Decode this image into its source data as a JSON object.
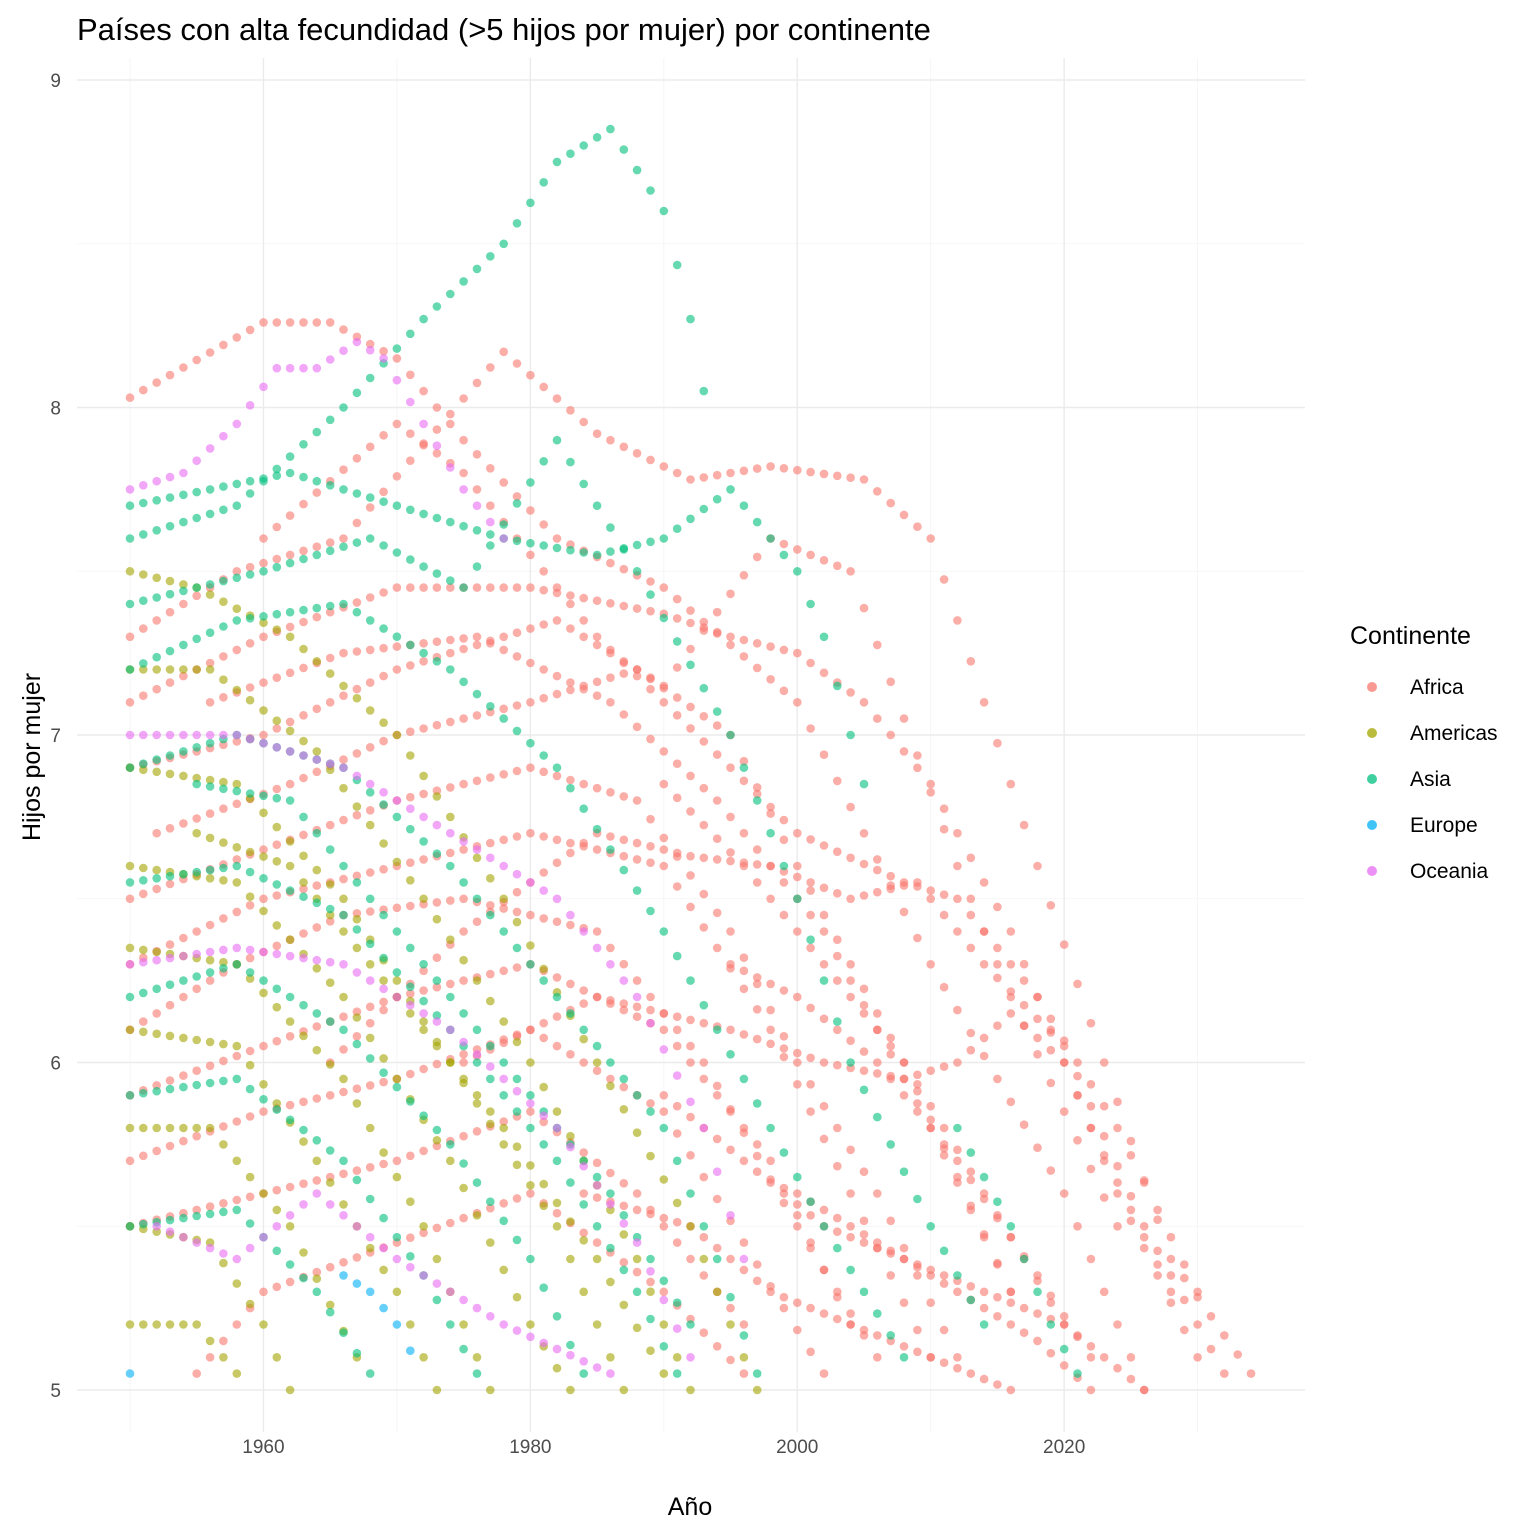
{
  "chart_data": {
    "type": "scatter",
    "title": "Países con alta fecundidad (>5 hijos por mujer) por continente",
    "xlabel": "Año",
    "ylabel": "Hijos por mujer",
    "xlim": [
      1950,
      2034
    ],
    "ylim": [
      5,
      9
    ],
    "x_ticks": [
      1960,
      1980,
      2000,
      2020
    ],
    "y_ticks": [
      5,
      6,
      7,
      8,
      9
    ],
    "grid": true,
    "legend": {
      "title": "Continente",
      "position": "right"
    },
    "colors": {
      "Africa": "#F8766D",
      "Americas": "#A3A500",
      "Asia": "#00BF7D",
      "Europe": "#00B0F6",
      "Oceania": "#E76BF3"
    },
    "series": [
      {
        "name": "Africa",
        "curves": [
          [
            1950,
            8.03,
            1960,
            8.26,
            1965,
            8.26,
            1970,
            8.15,
            1975,
            7.9,
            1982,
            7.6,
            1990,
            7.45,
            2000,
            7.1,
            2010,
            6.3,
            2020,
            5.6,
            2026,
            5.0
          ],
          [
            1950,
            7.3,
            1958,
            7.5,
            1966,
            7.6,
            1978,
            8.17,
            1985,
            7.92,
            1992,
            7.78,
            1998,
            7.82,
            2005,
            7.78,
            2010,
            7.6,
            2018,
            6.6,
            2028,
            5.4,
            2034,
            5.05
          ],
          [
            1950,
            7.1,
            1960,
            7.3,
            1970,
            7.45,
            1980,
            7.45,
            1990,
            7.37,
            1995,
            7.3,
            2000,
            7.25,
            2005,
            7.1,
            2010,
            6.85,
            2016,
            6.4,
            2022,
            5.8,
            2028,
            5.3
          ],
          [
            1950,
            6.9,
            1960,
            7.0,
            1970,
            7.2,
            1982,
            7.35,
            1990,
            7.15,
            1998,
            7.6,
            2004,
            7.5,
            2012,
            6.6,
            2016,
            6.2,
            2024,
            5.5
          ],
          [
            1952,
            6.7,
            1962,
            6.85,
            1970,
            7.0,
            1980,
            7.1,
            1988,
            7.2,
            1995,
            7.0,
            2000,
            6.6,
            2008,
            6.0,
            2016,
            5.3
          ],
          [
            1950,
            6.5,
            1960,
            6.65,
            1970,
            6.8,
            1980,
            6.9,
            1988,
            6.8,
            1995,
            6.4,
            2000,
            6.0,
            2006,
            5.6,
            2012,
            5.1
          ],
          [
            1950,
            6.3,
            1960,
            6.5,
            1970,
            6.6,
            1980,
            6.7,
            1990,
            6.6,
            1998,
            6.1,
            2004,
            5.6,
            2010,
            5.1
          ],
          [
            1950,
            6.1,
            1958,
            6.3,
            1966,
            6.45,
            1975,
            6.5,
            1985,
            6.4,
            1993,
            6.0,
            2000,
            5.5,
            2006,
            5.1
          ],
          [
            1950,
            5.9,
            1960,
            6.05,
            1970,
            6.2,
            1980,
            6.3,
            1990,
            6.1,
            1998,
            5.7,
            2004,
            5.2
          ],
          [
            1950,
            5.7,
            1960,
            5.85,
            1970,
            5.95,
            1980,
            6.1,
            1990,
            5.85,
            1996,
            5.45,
            2002,
            5.05
          ],
          [
            1950,
            5.5,
            1960,
            5.6,
            1970,
            5.7,
            1980,
            5.85,
            1988,
            5.6,
            1996,
            5.2
          ],
          [
            1955,
            5.05,
            1960,
            5.3,
            1970,
            5.45,
            1980,
            5.6,
            1990,
            5.3,
            1996,
            5.05
          ],
          [
            1960,
            7.6,
            1970,
            7.95,
            1975,
            7.8,
            1985,
            7.3,
            1995,
            6.9,
            2000,
            6.7,
            2008,
            6.55,
            2012,
            6.5,
            2018,
            6.2,
            2024,
            5.8,
            2030,
            5.3
          ],
          [
            1965,
            6.0,
            1975,
            6.4,
            1985,
            6.7,
            1992,
            6.63,
            1998,
            6.6,
            2004,
            6.5,
            2009,
            6.55,
            2014,
            6.3,
            2020,
            6.05,
            2026,
            5.5,
            2032,
            5.05
          ],
          [
            1975,
            6.0,
            1985,
            6.2,
            1995,
            6.1,
            2002,
            6.0,
            2008,
            5.95,
            2012,
            6.0,
            2016,
            6.15,
            2020,
            6.0,
            2024,
            5.6,
            2030,
            5.1
          ],
          [
            1990,
            5.9,
            1996,
            5.7,
            2002,
            5.5,
            2008,
            5.4,
            2014,
            5.3,
            2020,
            5.2,
            2026,
            5.0
          ],
          [
            1984,
            5.6,
            1992,
            5.5,
            1998,
            5.3,
            2004,
            5.2,
            2010,
            5.1,
            2016,
            5.0
          ],
          [
            1995,
            6.3,
            2000,
            6.2,
            2006,
            6.0,
            2012,
            5.7,
            2018,
            5.35,
            2022,
            5.1
          ],
          [
            2000,
            5.6,
            2006,
            5.45,
            2012,
            5.3,
            2018,
            5.15,
            2022,
            5.0
          ],
          [
            1990,
            6.85,
            1996,
            6.6,
            2002,
            6.3,
            2008,
            6.0,
            2014,
            5.6,
            2020,
            5.2
          ],
          [
            1956,
            7.1,
            1966,
            7.25,
            1976,
            7.3,
            1986,
            7.1,
            1994,
            6.8,
            2002,
            6.4,
            2010,
            5.8,
            2016,
            5.3
          ]
        ]
      },
      {
        "name": "Americas",
        "curves": [
          [
            1950,
            7.5,
            1955,
            7.45,
            1962,
            7.3,
            1970,
            7.0,
            1978,
            6.5,
            1985,
            6.0,
            1992,
            5.5,
            1997,
            5.0
          ],
          [
            1950,
            7.2,
            1956,
            7.2,
            1964,
            6.95,
            1972,
            6.5,
            1980,
            6.0,
            1988,
            5.4,
            1992,
            5.0
          ],
          [
            1950,
            6.9,
            1958,
            6.85,
            1966,
            6.5,
            1974,
            6.0,
            1982,
            5.5,
            1987,
            5.0
          ],
          [
            1950,
            6.6,
            1958,
            6.55,
            1966,
            6.2,
            1974,
            5.7,
            1980,
            5.2,
            1983,
            5.0
          ],
          [
            1950,
            6.35,
            1958,
            6.3,
            1966,
            5.95,
            1972,
            5.5,
            1977,
            5.0
          ],
          [
            1950,
            6.1,
            1958,
            6.05,
            1964,
            5.7,
            1970,
            5.3,
            1973,
            5.0
          ],
          [
            1950,
            5.8,
            1956,
            5.8,
            1962,
            5.5,
            1967,
            5.1
          ],
          [
            1950,
            5.5,
            1956,
            5.45,
            1960,
            5.2,
            1962,
            5.0
          ],
          [
            1950,
            5.2,
            1955,
            5.2,
            1958,
            5.05
          ],
          [
            1955,
            6.7,
            1962,
            6.6,
            1970,
            6.2,
            1978,
            5.8,
            1985,
            5.4,
            1990,
            5.05
          ]
        ]
      },
      {
        "name": "Asia",
        "curves": [
          [
            1950,
            7.6,
            1958,
            7.7,
            1966,
            8.0,
            1972,
            8.27,
            1978,
            8.5,
            1982,
            8.75,
            1986,
            8.85,
            1990,
            8.6,
            1992,
            8.27,
            1993,
            8.05
          ],
          [
            1950,
            7.7,
            1962,
            7.8,
            1970,
            7.7,
            1978,
            7.6,
            1985,
            7.55,
            1990,
            7.6,
            1995,
            7.75,
            2000,
            7.5,
            2002,
            7.3,
            2004,
            7.0,
            2005,
            6.85
          ],
          [
            1950,
            7.4,
            1960,
            7.5,
            1968,
            7.6,
            1975,
            7.45,
            1982,
            7.9,
            1988,
            7.5,
            1995,
            7.0,
            2000,
            6.5,
            2004,
            6.0,
            2010,
            5.5,
            2014,
            5.2
          ],
          [
            1950,
            7.2,
            1958,
            7.35,
            1966,
            7.4,
            1974,
            7.2,
            1982,
            6.9,
            1990,
            6.4,
            1996,
            5.95,
            2002,
            5.5,
            2008,
            5.1
          ],
          [
            1950,
            6.9,
            1958,
            7.0,
            1966,
            6.9,
            1974,
            6.6,
            1982,
            6.2,
            1990,
            5.8,
            1994,
            5.4,
            1997,
            5.05
          ],
          [
            1950,
            6.55,
            1958,
            6.6,
            1966,
            6.45,
            1974,
            6.1,
            1982,
            5.7,
            1988,
            5.3,
            1991,
            5.05
          ],
          [
            1950,
            6.2,
            1958,
            6.3,
            1966,
            6.1,
            1974,
            5.75,
            1980,
            5.4,
            1984,
            5.05
          ],
          [
            1950,
            5.9,
            1958,
            5.95,
            1966,
            5.7,
            1972,
            5.35,
            1976,
            5.05
          ],
          [
            1950,
            5.5,
            1958,
            5.55,
            1964,
            5.3,
            1968,
            5.05
          ],
          [
            1955,
            6.85,
            1962,
            6.8,
            1970,
            6.4,
            1978,
            6.0,
            1986,
            5.6,
            1992,
            5.2
          ],
          [
            2012,
            5.8,
            2016,
            5.5,
            2019,
            5.2,
            2021,
            5.05
          ]
        ]
      },
      {
        "name": "Europe",
        "curves": [
          [
            1950,
            5.05
          ],
          [
            1966,
            5.35,
            1968,
            5.3,
            1970,
            5.2,
            1971,
            5.12
          ]
        ]
      },
      {
        "name": "Oceania",
        "curves": [
          [
            1950,
            7.75,
            1954,
            7.8,
            1958,
            7.95,
            1961,
            8.12,
            1964,
            8.12,
            1967,
            8.2,
            1969,
            8.15,
            1972,
            7.95,
            1975,
            7.75,
            1978,
            7.6
          ],
          [
            1950,
            7.0,
            1958,
            7.0,
            1966,
            6.9,
            1974,
            6.7,
            1982,
            6.5,
            1988,
            6.2,
            1993,
            5.8,
            1996,
            5.4
          ],
          [
            1950,
            6.3,
            1958,
            6.35,
            1966,
            6.3,
            1974,
            6.1,
            1982,
            5.8,
            1988,
            5.45,
            1992,
            5.1
          ],
          [
            1952,
            5.5,
            1958,
            5.4,
            1964,
            5.6,
            1970,
            5.4,
            1978,
            5.2,
            1986,
            5.05
          ]
        ]
      }
    ]
  }
}
